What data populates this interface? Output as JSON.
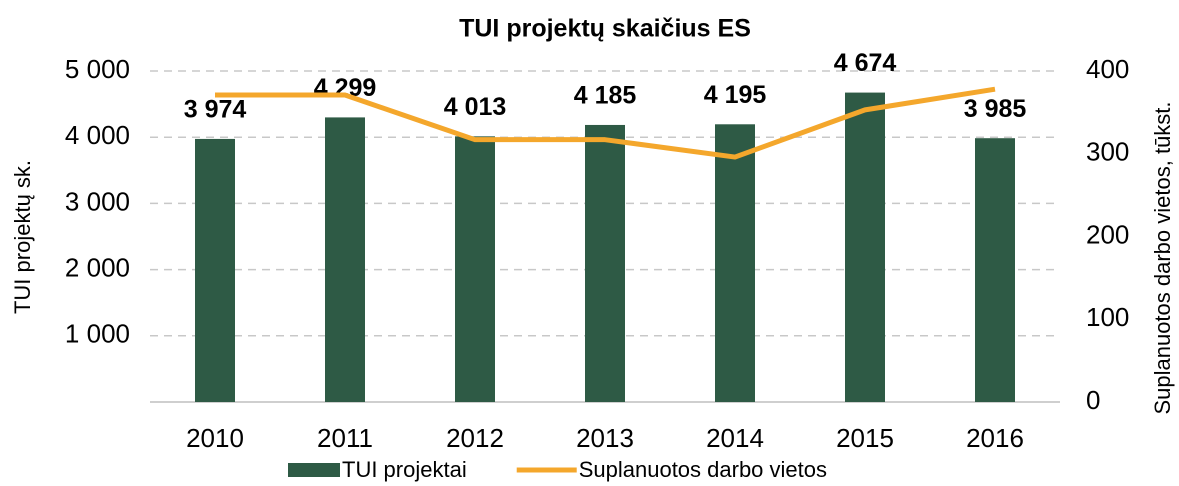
{
  "chart_data": {
    "type": "bar",
    "title": "TUI projektų skaičius ES",
    "ylabel": "TUI projektų sk.",
    "y2label": "Suplanuotos darbo vietos, tūkst.",
    "categories": [
      "2010",
      "2011",
      "2012",
      "2013",
      "2014",
      "2015",
      "2016"
    ],
    "series": [
      {
        "name": "TUI projektai",
        "type": "bar",
        "color": "#2e5a45",
        "values": [
          3974,
          4299,
          4013,
          4185,
          4195,
          4674,
          3985
        ],
        "value_labels": [
          "3 974",
          "4 299",
          "4 013",
          "4 185",
          "4 195",
          "4 674",
          "3 985"
        ]
      },
      {
        "name": "Suplanuotos darbo vietos",
        "type": "line",
        "axis": "y2",
        "color": "#f4a72c",
        "values": [
          371,
          371,
          317,
          317,
          296,
          353,
          378
        ]
      }
    ],
    "ylim": [
      0,
      5000
    ],
    "yticks": [
      {
        "value": 1000,
        "label": "1 000"
      },
      {
        "value": 2000,
        "label": "2 000"
      },
      {
        "value": 3000,
        "label": "3 000"
      },
      {
        "value": 4000,
        "label": "4 000"
      },
      {
        "value": 5000,
        "label": "5 000"
      }
    ],
    "y2lim": [
      0,
      400
    ],
    "y2ticks": [
      0,
      100,
      200,
      300,
      400
    ],
    "grid": true,
    "legend": "bottom"
  }
}
